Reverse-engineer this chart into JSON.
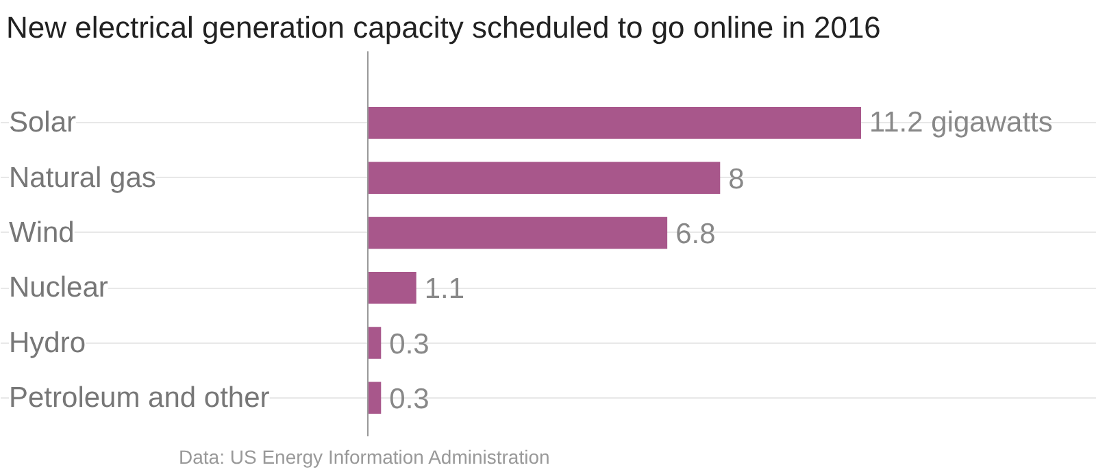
{
  "chart_data": {
    "type": "bar",
    "orientation": "horizontal",
    "title": "New electrical generation capacity scheduled to go online in 2016",
    "categories": [
      "Solar",
      "Natural gas",
      "Wind",
      "Nuclear",
      "Hydro",
      "Petroleum and other"
    ],
    "values": [
      11.2,
      8,
      6.8,
      1.1,
      0.3,
      0.3
    ],
    "value_labels": [
      "11.2 gigawatts",
      "8",
      "6.8",
      "1.1",
      "0.3",
      "0.3"
    ],
    "color": "#a8578b",
    "grid": "y",
    "annotations": [
      "Data: US Energy Information Administration"
    ]
  }
}
